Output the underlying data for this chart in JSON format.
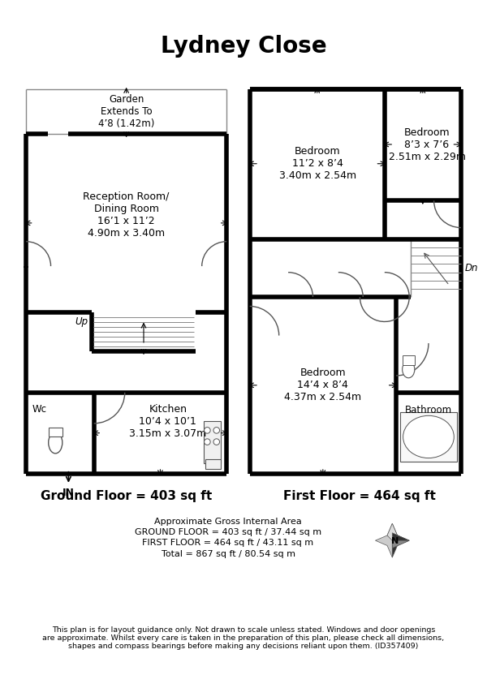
{
  "title": "Lydney Close",
  "bg": "#ffffff",
  "black": "#000000",
  "gray": "#888888",
  "light_gray": "#cccccc",
  "ground_floor_label": "Ground Floor = 403 sq ft",
  "first_floor_label": "First Floor = 464 sq ft",
  "area_line1": "Approximate Gross Internal Area",
  "area_line2": "GROUND FLOOR = 403 sq ft / 37.44 sq m",
  "area_line3": "FIRST FLOOR = 464 sq ft / 43.11 sq m",
  "area_line4": "Total = 867 sq ft / 80.54 sq m",
  "disclaimer": "This plan is for layout guidance only. Not drawn to scale unless stated. Windows and door openings\nare approximate. Whilst every care is taken in the preparation of this plan, please check all dimensions,\nshapes and compass bearings before making any decisions reliant upon them. (ID357409)",
  "room_reception": "Reception Room/\nDining Room\n16’1 x 11’2\n4.90m x 3.40m",
  "room_kitchen": "Kitchen\n10’4 x 10’1\n3.15m x 3.07m",
  "room_garden": "Garden\nExtends To\n4’8 (1.42m)",
  "room_wc": "Wc",
  "room_bed1": "Bedroom\n11’2 x 8’4\n3.40m x 2.54m",
  "room_bed2": "Bedroom\n8’3 x 7’6\n2.51m x 2.29m",
  "room_bed3": "Bedroom\n14’4 x 8’4\n4.37m x 2.54m",
  "room_bath": "Bathroom",
  "label_dn": "Dn",
  "label_up": "Up",
  "label_in": "IN"
}
